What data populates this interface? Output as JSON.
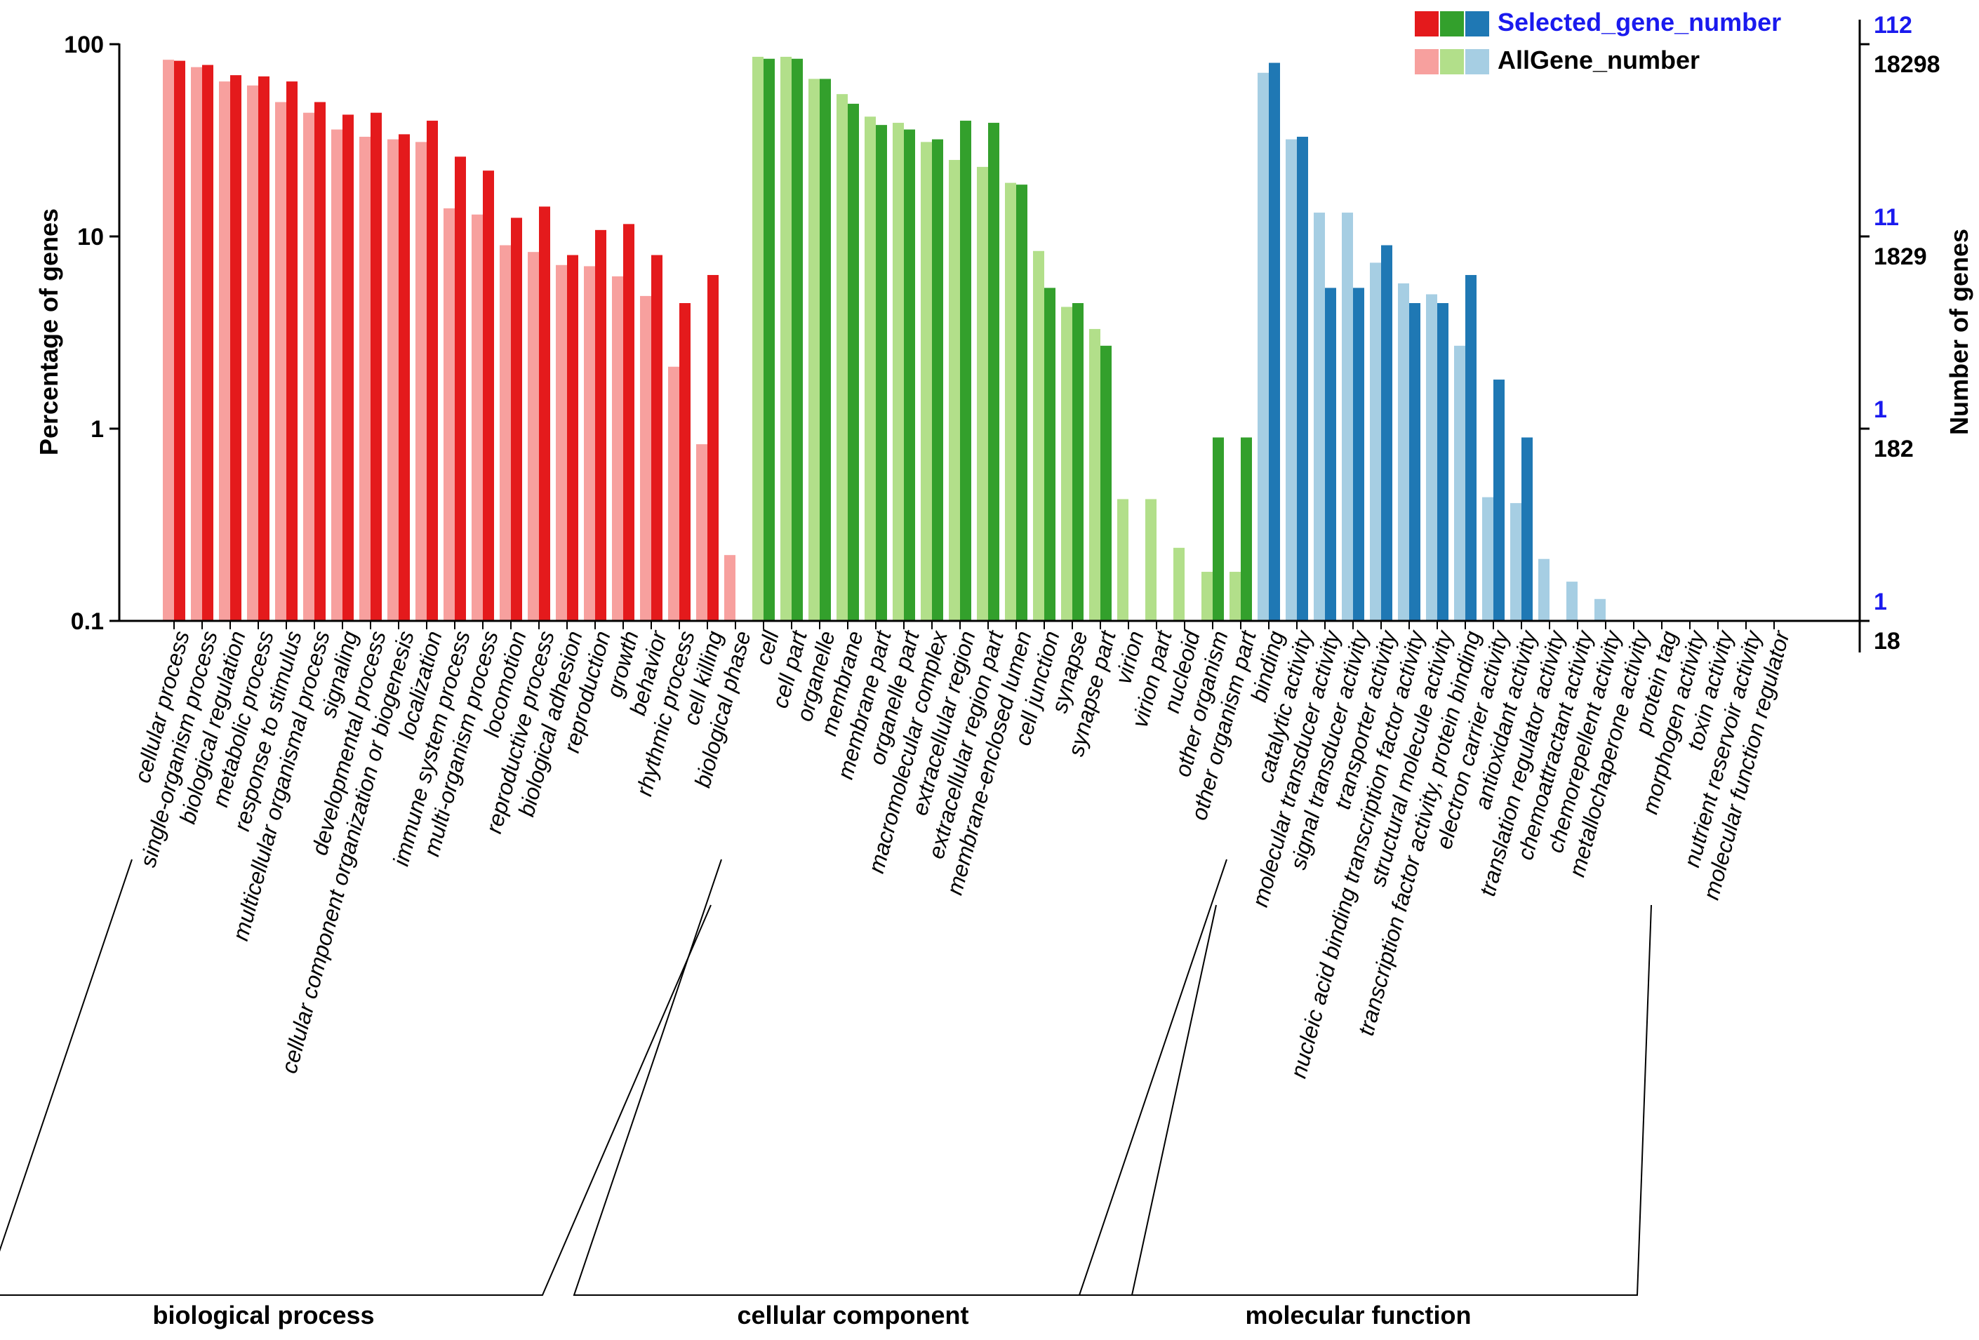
{
  "chart_data": {
    "type": "bar",
    "title": "",
    "ylabel_left": "Percentage of genes",
    "ylabel_right": "Number of genes",
    "y_scale": "log",
    "ylim": [
      0.1,
      100
    ],
    "left_ticks": [
      {
        "value": 100,
        "label": "100"
      },
      {
        "value": 10,
        "label": "10"
      },
      {
        "value": 1,
        "label": "1"
      },
      {
        "value": 0.1,
        "label": "0.1"
      }
    ],
    "right_ticks": [
      {
        "value": 100,
        "selected_label": "112",
        "all_label": "18298"
      },
      {
        "value": 10,
        "selected_label": "11",
        "all_label": "1829"
      },
      {
        "value": 1,
        "selected_label": "1",
        "all_label": "182"
      },
      {
        "value": 0.1,
        "selected_label": "1",
        "all_label": "18"
      }
    ],
    "legend": {
      "position": "top-right",
      "selected_label": "Selected_gene_number",
      "all_label": "AllGene_number"
    },
    "series_names": [
      "AllGene_number",
      "Selected_gene_number"
    ],
    "groups": [
      {
        "name": "biological process",
        "color_selected": "#e41a1c",
        "color_all": "#f7a09e",
        "categories": [
          {
            "label": "cellular process",
            "all": 83,
            "selected": 82
          },
          {
            "label": "single-organism process",
            "all": 76,
            "selected": 78
          },
          {
            "label": "biological regulation",
            "all": 64,
            "selected": 69
          },
          {
            "label": "metabolic process",
            "all": 61,
            "selected": 68
          },
          {
            "label": "response to stimulus",
            "all": 50,
            "selected": 64
          },
          {
            "label": "multicellular organismal process",
            "all": 44,
            "selected": 50
          },
          {
            "label": "signaling",
            "all": 36,
            "selected": 43
          },
          {
            "label": "developmental process",
            "all": 33,
            "selected": 44
          },
          {
            "label": "cellular component organization or biogenesis",
            "all": 32,
            "selected": 34
          },
          {
            "label": "localization",
            "all": 31,
            "selected": 40
          },
          {
            "label": "immune system process",
            "all": 14,
            "selected": 26
          },
          {
            "label": "multi-organism process",
            "all": 13,
            "selected": 22
          },
          {
            "label": "locomotion",
            "all": 9,
            "selected": 12.5
          },
          {
            "label": "reproductive process",
            "all": 8.3,
            "selected": 14.3
          },
          {
            "label": "biological adhesion",
            "all": 7.1,
            "selected": 8
          },
          {
            "label": "reproduction",
            "all": 7,
            "selected": 10.8
          },
          {
            "label": "growth",
            "all": 6.2,
            "selected": 11.6
          },
          {
            "label": "behavior",
            "all": 4.9,
            "selected": 8
          },
          {
            "label": "rhythmic process",
            "all": 2.1,
            "selected": 4.5
          },
          {
            "label": "cell killing",
            "all": 0.83,
            "selected": 6.3
          },
          {
            "label": "biological phase",
            "all": 0.22,
            "selected": null
          }
        ]
      },
      {
        "name": "cellular component",
        "color_selected": "#33a02c",
        "color_all": "#b2df8a",
        "categories": [
          {
            "label": "cell",
            "all": 86,
            "selected": 84
          },
          {
            "label": "cell part",
            "all": 86,
            "selected": 84
          },
          {
            "label": "organelle",
            "all": 66,
            "selected": 66
          },
          {
            "label": "membrane",
            "all": 55,
            "selected": 49
          },
          {
            "label": "membrane part",
            "all": 42,
            "selected": 38
          },
          {
            "label": "organelle part",
            "all": 39,
            "selected": 36
          },
          {
            "label": "macromolecular complex",
            "all": 31,
            "selected": 32
          },
          {
            "label": "extracellular region",
            "all": 25,
            "selected": 40
          },
          {
            "label": "extracellular region part",
            "all": 23,
            "selected": 39
          },
          {
            "label": "membrane-enclosed lumen",
            "all": 19,
            "selected": 18.6
          },
          {
            "label": "cell junction",
            "all": 8.4,
            "selected": 5.4
          },
          {
            "label": "synapse",
            "all": 4.3,
            "selected": 4.5
          },
          {
            "label": "synapse part",
            "all": 3.3,
            "selected": 2.7
          },
          {
            "label": "virion",
            "all": 0.43,
            "selected": null
          },
          {
            "label": "virion part",
            "all": 0.43,
            "selected": null
          },
          {
            "label": "nucleoid",
            "all": 0.24,
            "selected": null
          },
          {
            "label": "other organism",
            "all": 0.18,
            "selected": 0.9
          },
          {
            "label": "other organism part",
            "all": 0.18,
            "selected": 0.9
          }
        ]
      },
      {
        "name": "molecular function",
        "color_selected": "#1f78b4",
        "color_all": "#a6cee3",
        "categories": [
          {
            "label": "binding",
            "all": 71,
            "selected": 80
          },
          {
            "label": "catalytic activity",
            "all": 32,
            "selected": 33
          },
          {
            "label": "molecular transducer activity",
            "all": 13.3,
            "selected": 5.4
          },
          {
            "label": "signal transducer activity",
            "all": 13.3,
            "selected": 5.4
          },
          {
            "label": "transporter activity",
            "all": 7.3,
            "selected": 9
          },
          {
            "label": "nucleic acid binding transcription factor activity",
            "all": 5.7,
            "selected": 4.5
          },
          {
            "label": "structural molecule activity",
            "all": 5,
            "selected": 4.5
          },
          {
            "label": "transcription factor activity, protein binding",
            "all": 2.7,
            "selected": 6.3
          },
          {
            "label": "electron carrier activity",
            "all": 0.44,
            "selected": 1.8
          },
          {
            "label": "antioxidant activity",
            "all": 0.41,
            "selected": 0.9
          },
          {
            "label": "translation regulator activity",
            "all": 0.21,
            "selected": null
          },
          {
            "label": "chemoattractant activity",
            "all": 0.16,
            "selected": null
          },
          {
            "label": "chemorepellent activity",
            "all": 0.13,
            "selected": null
          },
          {
            "label": "metallochaperone activity",
            "all": null,
            "selected": null
          },
          {
            "label": "protein tag",
            "all": null,
            "selected": null
          },
          {
            "label": "morphogen activity",
            "all": null,
            "selected": null
          },
          {
            "label": "toxin activity",
            "all": null,
            "selected": null
          },
          {
            "label": "nutrient reservoir activity",
            "all": null,
            "selected": null
          },
          {
            "label": "molecular function regulator",
            "all": null,
            "selected": null
          }
        ]
      }
    ]
  }
}
